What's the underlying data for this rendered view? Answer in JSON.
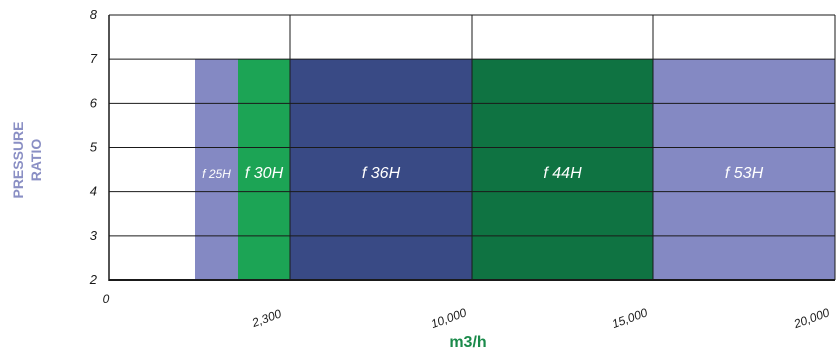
{
  "chart_data": {
    "type": "area",
    "xlabel": "m3/h",
    "ylabel_lines": [
      "PRESSURE",
      "RATIO"
    ],
    "ylim": [
      2,
      8
    ],
    "y_ticks": [
      "2",
      "3",
      "4",
      "5",
      "6",
      "7",
      "8"
    ],
    "x_ticks": [
      {
        "label": "0",
        "value": 0
      },
      {
        "label": "2,300",
        "value": 2300
      },
      {
        "label": "10,000",
        "value": 10000
      },
      {
        "label": "15,000",
        "value": 15000
      },
      {
        "label": "20,000",
        "value": 20000
      }
    ],
    "x_scale": "piecewise",
    "grid": true,
    "bands": [
      {
        "label": "f 25H",
        "x_start": 1150,
        "x_end": 1725,
        "y_max": 7,
        "color": "#8489c3"
      },
      {
        "label": "f 30H",
        "x_start": 1725,
        "x_end": 2300,
        "y_max": 7,
        "color": "#1ca455"
      },
      {
        "label": "f 36H",
        "x_start": 2300,
        "x_end": 10000,
        "y_max": 7,
        "color": "#394a85"
      },
      {
        "label": "f 44H",
        "x_start": 10000,
        "x_end": 15000,
        "y_max": 7,
        "color": "#0f7342"
      },
      {
        "label": "f 53H",
        "x_start": 15000,
        "x_end": 20000,
        "y_max": 7,
        "color": "#8489c3"
      }
    ]
  }
}
